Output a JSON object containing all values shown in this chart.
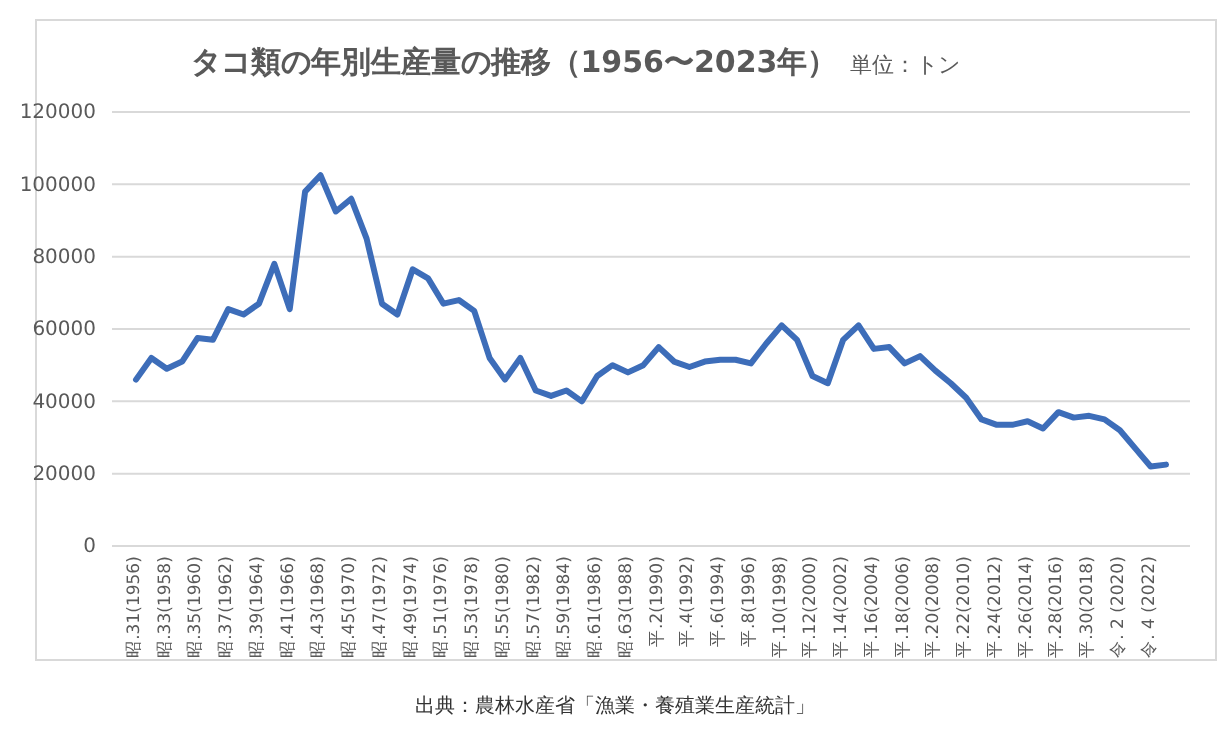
{
  "chart_data": {
    "type": "line",
    "title": "タコ類の年別生産量の推移（1956〜2023年）",
    "subtitle": "単位：トン",
    "annotations": [
      "出典：農林水産省「漁業・養殖業生産統計」"
    ],
    "categories": [
      "昭.31(1956)",
      null,
      "昭.33(1958)",
      null,
      "昭.35(1960)",
      null,
      "昭.37(1962)",
      null,
      "昭.39(1964)",
      null,
      "昭.41(1966)",
      null,
      "昭.43(1968)",
      null,
      "昭.45(1970)",
      null,
      "昭.47(1972)",
      null,
      "昭.49(1974)",
      null,
      "昭.51(1976)",
      null,
      "昭.53(1978)",
      null,
      "昭.55(1980)",
      null,
      "昭.57(1982)",
      null,
      "昭.59(1984)",
      null,
      "昭.61(1986)",
      null,
      "昭.63(1988)",
      null,
      "平.2(1990)",
      null,
      "平.4(1992)",
      null,
      "平.6(1994)",
      null,
      "平.8(1996)",
      null,
      "平.10(1998)",
      null,
      "平.12(2000)",
      null,
      "平.14(2002)",
      null,
      "平.16(2004)",
      null,
      "平.18(2006)",
      null,
      "平.20(2008)",
      null,
      "平.22(2010)",
      null,
      "平.24(2012)",
      null,
      "平.26(2014)",
      null,
      "平.28(2016)",
      null,
      "平.30(2018)",
      null,
      "令. 2 (2020)",
      null,
      "令. 4 (2022)",
      null
    ],
    "series": [
      {
        "color": "#3d6db9",
        "values": [
          46000,
          52000,
          49000,
          51000,
          57500,
          57000,
          65500,
          64000,
          67000,
          78000,
          65500,
          98000,
          102500,
          92500,
          96000,
          85000,
          67000,
          64000,
          76500,
          74000,
          67000,
          68000,
          65000,
          52000,
          46000,
          52000,
          43000,
          41500,
          43000,
          40000,
          47000,
          50000,
          48000,
          50000,
          55000,
          51000,
          49500,
          51000,
          51500,
          51500,
          50500,
          56000,
          61000,
          57000,
          47000,
          45000,
          57000,
          61000,
          54500,
          55000,
          50500,
          52500,
          48500,
          45000,
          41000,
          35000,
          33500,
          33500,
          34500,
          32500,
          37000,
          35500,
          36000,
          35000,
          32000,
          27000,
          22000,
          22500
        ]
      }
    ],
    "ylim": [
      0,
      120000
    ],
    "yticks": [
      0,
      20000,
      40000,
      60000,
      80000,
      100000,
      120000
    ],
    "grid": "y",
    "marker": "none",
    "line_style": "solid"
  }
}
